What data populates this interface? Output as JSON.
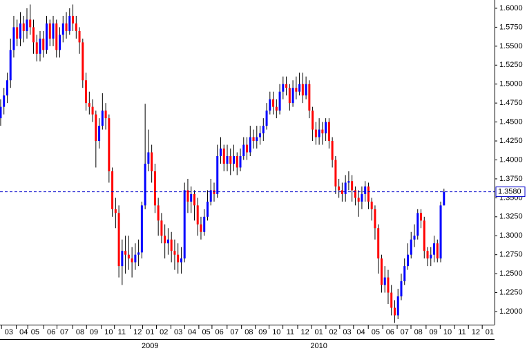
{
  "chart_data": {
    "type": "candlestick",
    "up_color": "#0000ff",
    "down_color": "#ff0000",
    "wick_color": "#000000",
    "open": [
      1.455,
      1.47,
      1.485,
      1.505,
      1.545,
      1.575,
      1.56,
      1.58,
      1.57,
      1.585,
      1.575,
      1.555,
      1.54,
      1.56,
      1.545,
      1.58,
      1.56,
      1.58,
      1.545,
      1.565,
      1.58,
      1.57,
      1.59,
      1.58,
      1.57,
      1.555,
      1.505,
      1.475,
      1.47,
      1.46,
      1.425,
      1.445,
      1.465,
      1.455,
      1.385,
      1.335,
      1.33,
      1.26,
      1.28,
      1.275,
      1.27,
      1.265,
      1.275,
      1.278,
      1.34,
      1.395,
      1.41,
      1.385,
      1.34,
      1.32,
      1.3,
      1.29,
      1.295,
      1.28,
      1.275,
      1.265,
      1.27,
      1.36,
      1.345,
      1.355,
      1.34,
      1.315,
      1.305,
      1.325,
      1.345,
      1.36,
      1.355,
      1.405,
      1.415,
      1.395,
      1.405,
      1.395,
      1.405,
      1.39,
      1.405,
      1.42,
      1.41,
      1.43,
      1.425,
      1.43,
      1.435,
      1.445,
      1.465,
      1.48,
      1.47,
      1.465,
      1.49,
      1.5,
      1.495,
      1.475,
      1.495,
      1.49,
      1.5,
      1.485,
      1.5,
      1.465,
      1.44,
      1.43,
      1.44,
      1.435,
      1.45,
      1.425,
      1.4,
      1.365,
      1.36,
      1.355,
      1.37,
      1.372,
      1.36,
      1.35,
      1.345,
      1.355,
      1.365,
      1.345,
      1.335,
      1.31,
      1.27,
      1.235,
      1.245,
      1.225,
      1.205,
      1.195,
      1.22,
      1.24,
      1.26,
      1.275,
      1.295,
      1.3,
      1.33,
      1.32,
      1.28,
      1.27,
      1.275,
      1.29,
      1.27,
      1.34
    ],
    "high": [
      1.48,
      1.495,
      1.515,
      1.56,
      1.59,
      1.585,
      1.595,
      1.59,
      1.6,
      1.605,
      1.585,
      1.565,
      1.57,
      1.57,
      1.59,
      1.585,
      1.59,
      1.585,
      1.575,
      1.59,
      1.595,
      1.6,
      1.605,
      1.59,
      1.575,
      1.56,
      1.515,
      1.49,
      1.48,
      1.465,
      1.455,
      1.488,
      1.475,
      1.46,
      1.39,
      1.35,
      1.34,
      1.295,
      1.3,
      1.3,
      1.285,
      1.29,
      1.295,
      1.345,
      1.474,
      1.44,
      1.42,
      1.395,
      1.35,
      1.33,
      1.315,
      1.31,
      1.305,
      1.295,
      1.29,
      1.285,
      1.37,
      1.375,
      1.365,
      1.36,
      1.35,
      1.325,
      1.335,
      1.36,
      1.375,
      1.37,
      1.42,
      1.43,
      1.42,
      1.42,
      1.415,
      1.42,
      1.41,
      1.415,
      1.43,
      1.43,
      1.445,
      1.44,
      1.445,
      1.445,
      1.455,
      1.475,
      1.49,
      1.49,
      1.48,
      1.5,
      1.51,
      1.51,
      1.5,
      1.505,
      1.51,
      1.515,
      1.515,
      1.51,
      1.505,
      1.47,
      1.45,
      1.455,
      1.45,
      1.455,
      1.455,
      1.43,
      1.405,
      1.375,
      1.37,
      1.38,
      1.385,
      1.38,
      1.365,
      1.36,
      1.365,
      1.372,
      1.37,
      1.35,
      1.34,
      1.315,
      1.275,
      1.26,
      1.255,
      1.235,
      1.215,
      1.23,
      1.25,
      1.27,
      1.29,
      1.305,
      1.315,
      1.335,
      1.335,
      1.325,
      1.285,
      1.285,
      1.3,
      1.295,
      1.345,
      1.362
    ],
    "low": [
      1.445,
      1.46,
      1.475,
      1.495,
      1.535,
      1.55,
      1.55,
      1.555,
      1.56,
      1.565,
      1.54,
      1.53,
      1.53,
      1.535,
      1.54,
      1.55,
      1.55,
      1.535,
      1.535,
      1.555,
      1.56,
      1.565,
      1.57,
      1.56,
      1.54,
      1.495,
      1.465,
      1.46,
      1.45,
      1.39,
      1.415,
      1.44,
      1.44,
      1.37,
      1.325,
      1.31,
      1.245,
      1.235,
      1.25,
      1.255,
      1.245,
      1.255,
      1.26,
      1.27,
      1.335,
      1.385,
      1.37,
      1.33,
      1.3,
      1.29,
      1.27,
      1.275,
      1.265,
      1.255,
      1.25,
      1.25,
      1.265,
      1.33,
      1.33,
      1.32,
      1.3,
      1.295,
      1.3,
      1.32,
      1.34,
      1.345,
      1.35,
      1.395,
      1.385,
      1.385,
      1.38,
      1.385,
      1.38,
      1.385,
      1.4,
      1.4,
      1.405,
      1.415,
      1.415,
      1.42,
      1.425,
      1.44,
      1.46,
      1.46,
      1.455,
      1.46,
      1.48,
      1.485,
      1.465,
      1.47,
      1.48,
      1.485,
      1.475,
      1.48,
      1.455,
      1.425,
      1.42,
      1.42,
      1.42,
      1.425,
      1.415,
      1.39,
      1.355,
      1.35,
      1.345,
      1.345,
      1.36,
      1.345,
      1.34,
      1.325,
      1.335,
      1.345,
      1.335,
      1.32,
      1.295,
      1.25,
      1.225,
      1.225,
      1.21,
      1.195,
      1.185,
      1.19,
      1.215,
      1.235,
      1.255,
      1.27,
      1.285,
      1.295,
      1.31,
      1.27,
      1.26,
      1.26,
      1.265,
      1.265,
      1.265,
      1.34
    ],
    "close": [
      1.47,
      1.485,
      1.505,
      1.545,
      1.575,
      1.56,
      1.58,
      1.57,
      1.585,
      1.575,
      1.555,
      1.54,
      1.56,
      1.545,
      1.58,
      1.56,
      1.58,
      1.545,
      1.565,
      1.58,
      1.57,
      1.59,
      1.58,
      1.57,
      1.555,
      1.505,
      1.475,
      1.47,
      1.46,
      1.425,
      1.445,
      1.465,
      1.455,
      1.385,
      1.335,
      1.33,
      1.26,
      1.28,
      1.275,
      1.27,
      1.265,
      1.275,
      1.278,
      1.34,
      1.395,
      1.41,
      1.385,
      1.34,
      1.32,
      1.3,
      1.29,
      1.295,
      1.28,
      1.275,
      1.265,
      1.27,
      1.36,
      1.345,
      1.355,
      1.34,
      1.315,
      1.305,
      1.325,
      1.345,
      1.36,
      1.355,
      1.405,
      1.415,
      1.395,
      1.405,
      1.395,
      1.405,
      1.39,
      1.405,
      1.42,
      1.41,
      1.43,
      1.425,
      1.43,
      1.435,
      1.445,
      1.465,
      1.48,
      1.47,
      1.465,
      1.49,
      1.5,
      1.495,
      1.475,
      1.495,
      1.49,
      1.5,
      1.485,
      1.5,
      1.465,
      1.44,
      1.43,
      1.44,
      1.435,
      1.45,
      1.425,
      1.4,
      1.365,
      1.36,
      1.355,
      1.37,
      1.372,
      1.36,
      1.35,
      1.345,
      1.355,
      1.365,
      1.345,
      1.335,
      1.31,
      1.27,
      1.235,
      1.245,
      1.225,
      1.205,
      1.195,
      1.22,
      1.24,
      1.26,
      1.275,
      1.295,
      1.3,
      1.33,
      1.32,
      1.28,
      1.27,
      1.275,
      1.29,
      1.27,
      1.34,
      1.358
    ],
    "current_price": {
      "value": 1.358,
      "label": "1.3580",
      "color": "#0000cc"
    },
    "xlim": [
      -0.2,
      150.4
    ],
    "ylim": [
      1.1827,
      1.6109
    ],
    "yticks": [
      {
        "value": 1.2,
        "label": "1.2000"
      },
      {
        "value": 1.225,
        "label": "1.2250"
      },
      {
        "value": 1.25,
        "label": "1.2500"
      },
      {
        "value": 1.275,
        "label": "1.2750"
      },
      {
        "value": 1.3,
        "label": "1.3000"
      },
      {
        "value": 1.325,
        "label": "1.3250"
      },
      {
        "value": 1.35,
        "label": "1.3500"
      },
      {
        "value": 1.375,
        "label": "1.3750"
      },
      {
        "value": 1.4,
        "label": "1.4000"
      },
      {
        "value": 1.425,
        "label": "1.4250"
      },
      {
        "value": 1.45,
        "label": "1.4500"
      },
      {
        "value": 1.475,
        "label": "1.4750"
      },
      {
        "value": 1.5,
        "label": "1.5000"
      },
      {
        "value": 1.525,
        "label": "1.5250"
      },
      {
        "value": 1.55,
        "label": "1.5500"
      },
      {
        "value": 1.575,
        "label": "1.5750"
      },
      {
        "value": 1.6,
        "label": "1.6000"
      }
    ],
    "xticks": [
      {
        "value": 2.5,
        "label": "03"
      },
      {
        "value": 7,
        "label": "04"
      },
      {
        "value": 10.5,
        "label": "05"
      },
      {
        "value": 15.4,
        "label": "06"
      },
      {
        "value": 19.4,
        "label": "07"
      },
      {
        "value": 24.2,
        "label": "08"
      },
      {
        "value": 28.4,
        "label": "09"
      },
      {
        "value": 32.9,
        "label": "10"
      },
      {
        "value": 36.9,
        "label": "11"
      },
      {
        "value": 41.7,
        "label": "12"
      },
      {
        "value": 45.5,
        "label": "01"
      },
      {
        "value": 49.7,
        "label": "02"
      },
      {
        "value": 54.1,
        "label": "03"
      },
      {
        "value": 58.3,
        "label": "04"
      },
      {
        "value": 62.6,
        "label": "05"
      },
      {
        "value": 66.6,
        "label": "06"
      },
      {
        "value": 71.2,
        "label": "07"
      },
      {
        "value": 75.6,
        "label": "08"
      },
      {
        "value": 79.8,
        "label": "09"
      },
      {
        "value": 84,
        "label": "10"
      },
      {
        "value": 88.2,
        "label": "11"
      },
      {
        "value": 92.7,
        "label": "12"
      },
      {
        "value": 96.9,
        "label": "01"
      },
      {
        "value": 101.3,
        "label": "02"
      },
      {
        "value": 105.5,
        "label": "03"
      },
      {
        "value": 109.7,
        "label": "04"
      },
      {
        "value": 114.2,
        "label": "05"
      },
      {
        "value": 118.6,
        "label": "06"
      },
      {
        "value": 123,
        "label": "07"
      },
      {
        "value": 127.2,
        "label": "08"
      },
      {
        "value": 131.8,
        "label": "09"
      },
      {
        "value": 136.1,
        "label": "10"
      },
      {
        "value": 140.5,
        "label": "11"
      },
      {
        "value": 144.7,
        "label": "12"
      },
      {
        "value": 148.9,
        "label": "01"
      }
    ],
    "year_labels": [
      {
        "text": "2009",
        "x": 45.5
      },
      {
        "text": "2010",
        "x": 96.9
      }
    ]
  }
}
